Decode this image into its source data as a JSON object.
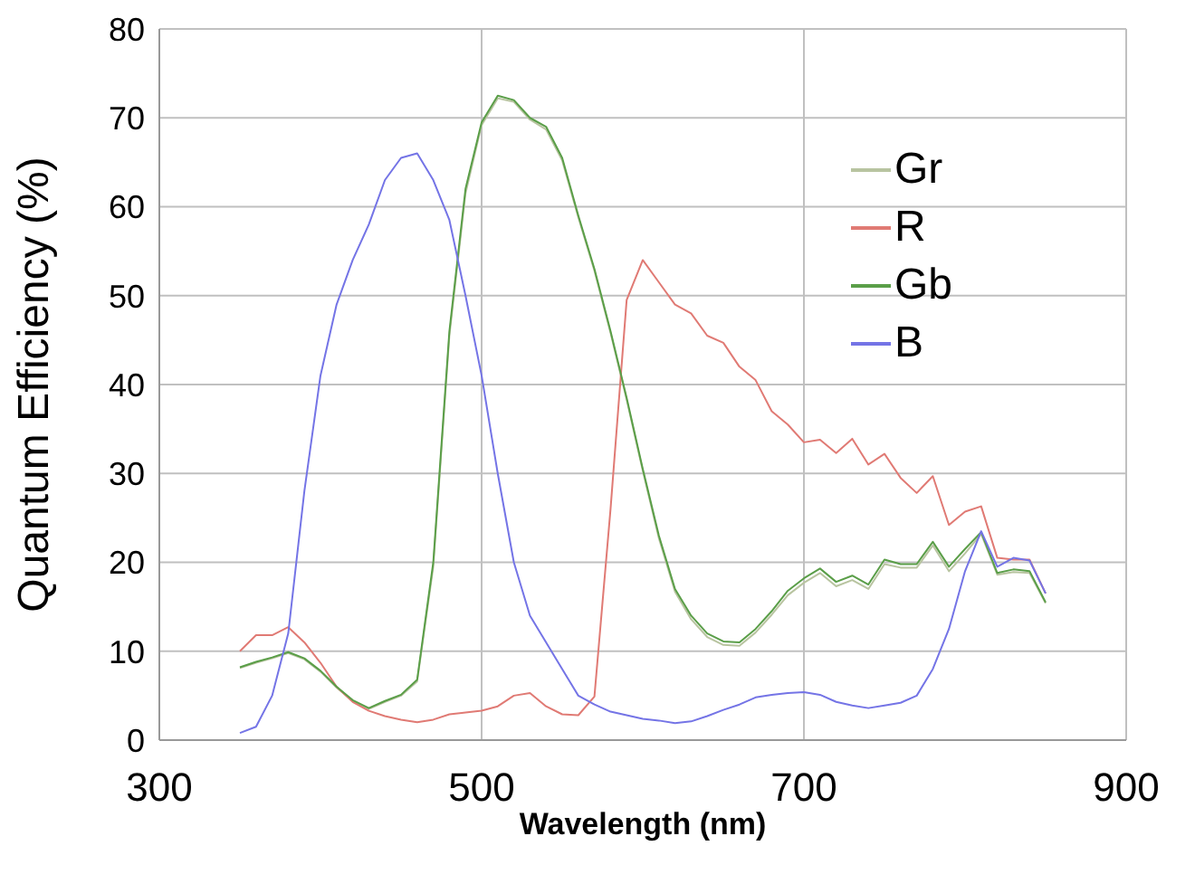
{
  "chart_data": {
    "type": "line",
    "xlabel": "Wavelength (nm)",
    "ylabel": "Quantum Efficiency (%)",
    "x": [
      350,
      360,
      370,
      380,
      390,
      400,
      410,
      420,
      430,
      440,
      450,
      460,
      470,
      480,
      490,
      500,
      510,
      520,
      530,
      540,
      550,
      560,
      570,
      580,
      590,
      600,
      610,
      620,
      630,
      640,
      650,
      660,
      670,
      680,
      690,
      700,
      710,
      720,
      730,
      740,
      750,
      760,
      770,
      780,
      790,
      800,
      810,
      820,
      830,
      840,
      850
    ],
    "xlim": [
      300,
      900
    ],
    "xticks": [
      300,
      500,
      700,
      900
    ],
    "ylim": [
      0,
      80
    ],
    "yticks": [
      0,
      10,
      20,
      30,
      40,
      50,
      60,
      70,
      80
    ],
    "grid": true,
    "legend": "top right",
    "marker": "none",
    "line_style": "solid",
    "series": [
      {
        "name": "Gr",
        "color": "#b8c4a0",
        "values": [
          8.1,
          8.7,
          9.2,
          9.8,
          9.1,
          7.7,
          5.9,
          4.4,
          3.5,
          4.3,
          5,
          6.6,
          19.5,
          45.5,
          61.5,
          69.2,
          72.2,
          71.8,
          69.8,
          68.7,
          65.2,
          58.8,
          52.8,
          45.8,
          38.3,
          30.3,
          22.7,
          16.7,
          13.6,
          11.6,
          10.7,
          10.6,
          12.1,
          14.1,
          16.3,
          17.7,
          18.8,
          17.3,
          18,
          17,
          19.8,
          19.4,
          19.4,
          21.9,
          19,
          21,
          23.2,
          18.6,
          18.9,
          18.8,
          15.4
        ]
      },
      {
        "name": "R",
        "color": "#e07a74",
        "values": [
          10,
          11.8,
          11.8,
          12.7,
          11,
          8.7,
          6,
          4.3,
          3.3,
          2.7,
          2.3,
          2,
          2.3,
          2.9,
          3.1,
          3.3,
          3.8,
          5,
          5.3,
          3.8,
          2.9,
          2.8,
          4.9,
          26,
          49.5,
          54,
          51.5,
          49,
          48,
          45.5,
          44.7,
          42,
          40.5,
          37,
          35.5,
          33.5,
          33.8,
          32.3,
          33.9,
          31,
          32.2,
          29.5,
          27.8,
          29.7,
          24.2,
          25.7,
          26.3,
          20.5,
          20.3,
          20.3,
          16.5
        ]
      },
      {
        "name": "Gb",
        "color": "#5a9e48",
        "values": [
          8.2,
          8.8,
          9.3,
          9.9,
          9.2,
          7.8,
          6,
          4.5,
          3.6,
          4.4,
          5.1,
          6.8,
          20,
          46,
          62,
          69.5,
          72.5,
          72,
          70,
          69,
          65.5,
          59,
          53,
          46,
          38.5,
          30.5,
          23,
          17,
          14,
          12,
          11.1,
          11,
          12.5,
          14.5,
          16.8,
          18.2,
          19.3,
          17.8,
          18.5,
          17.5,
          20.3,
          19.8,
          19.8,
          22.3,
          19.5,
          21.5,
          23.4,
          18.8,
          19.2,
          19,
          15.5
        ]
      },
      {
        "name": "B",
        "color": "#7474e6",
        "values": [
          0.8,
          1.5,
          5,
          12,
          28,
          41,
          49,
          54,
          58,
          63,
          65.5,
          66,
          63,
          58.5,
          50,
          41,
          30,
          20,
          14,
          11,
          8,
          5,
          4,
          3.2,
          2.8,
          2.4,
          2.2,
          1.9,
          2.1,
          2.7,
          3.4,
          4,
          4.8,
          5.1,
          5.3,
          5.4,
          5.1,
          4.3,
          3.9,
          3.6,
          3.9,
          4.2,
          5,
          8,
          12.5,
          19,
          23.5,
          19.5,
          20.5,
          20.2,
          16.5
        ]
      }
    ]
  }
}
